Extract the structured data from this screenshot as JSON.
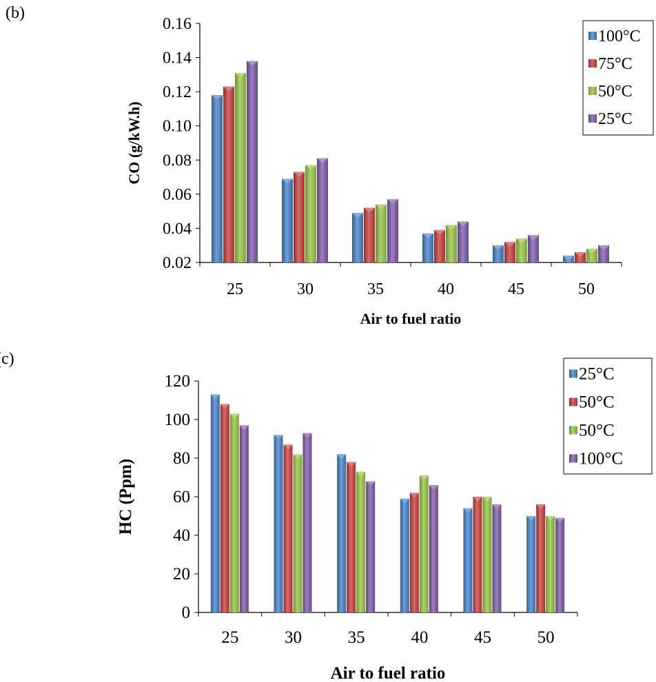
{
  "panels": {
    "b_label": "(b)",
    "c_label": "(c)"
  },
  "chart_data": [
    {
      "type": "bar",
      "panel": "(b)",
      "xlabel": "Air to fuel ratio",
      "ylabel": "CO  (g/kW.h)",
      "categories": [
        "25",
        "30",
        "35",
        "40",
        "45",
        "50"
      ],
      "ylim": [
        0.02,
        0.16
      ],
      "yticks": [
        "0.02",
        "0.04",
        "0.06",
        "0.08",
        "0.10",
        "0.12",
        "0.14",
        "0.16"
      ],
      "legend_position": "top-right",
      "grid": false,
      "series": [
        {
          "name": "100°C",
          "color": "#3f7ec6",
          "values": [
            0.118,
            0.069,
            0.049,
            0.037,
            0.03,
            0.024
          ]
        },
        {
          "name": "75°C",
          "color": "#c43a36",
          "values": [
            0.123,
            0.073,
            0.052,
            0.039,
            0.032,
            0.026
          ]
        },
        {
          "name": "50°C",
          "color": "#93c23f",
          "values": [
            0.131,
            0.077,
            0.054,
            0.042,
            0.034,
            0.028
          ]
        },
        {
          "name": "25°C",
          "color": "#7c55a8",
          "values": [
            0.138,
            0.081,
            0.057,
            0.044,
            0.036,
            0.03
          ]
        }
      ]
    },
    {
      "type": "bar",
      "panel": "(c)",
      "xlabel": "Air to fuel ratio",
      "ylabel": "HC (Ppm)",
      "categories": [
        "25",
        "30",
        "35",
        "40",
        "45",
        "50"
      ],
      "ylim": [
        0,
        120
      ],
      "yticks": [
        "0",
        "20",
        "40",
        "60",
        "80",
        "100",
        "120"
      ],
      "legend_position": "top-right",
      "grid": false,
      "series": [
        {
          "name": "25°C",
          "color": "#3f7ec6",
          "values": [
            113,
            92,
            82,
            59,
            54,
            50
          ]
        },
        {
          "name": "50°C",
          "color": "#c43a36",
          "values": [
            108,
            87,
            78,
            62,
            60,
            56
          ]
        },
        {
          "name": "50°C",
          "color": "#93c23f",
          "values": [
            103,
            82,
            73,
            71,
            60,
            50
          ]
        },
        {
          "name": "100°C",
          "color": "#7c55a8",
          "values": [
            97,
            93,
            68,
            66,
            56,
            49
          ]
        }
      ]
    }
  ]
}
